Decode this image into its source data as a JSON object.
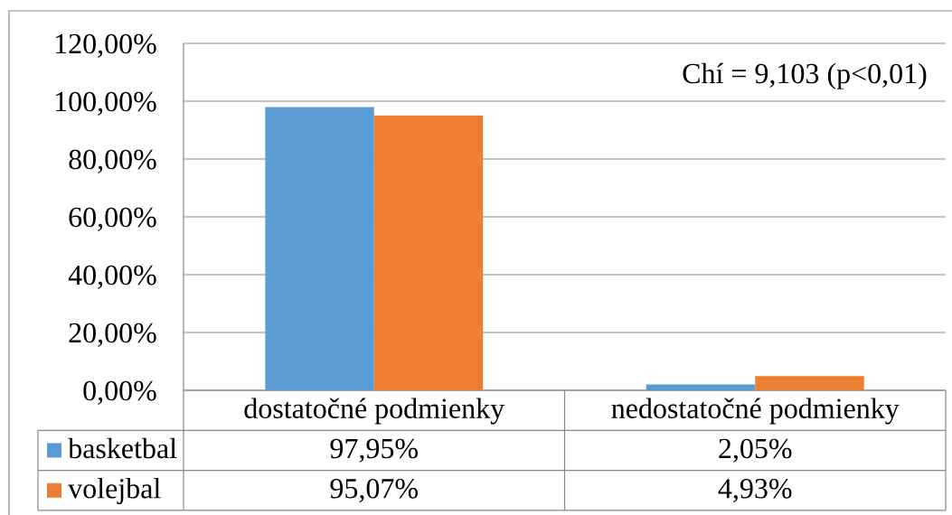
{
  "chart_data": {
    "type": "bar",
    "categories": [
      "dostatočné podmienky",
      "nedostatočné podmienky"
    ],
    "series": [
      {
        "name": "basketbal",
        "color": "#5b9bd5",
        "values": [
          97.95,
          2.05
        ],
        "value_labels": [
          "97,95%",
          "2,05%"
        ]
      },
      {
        "name": "volejbal",
        "color": "#ed7d31",
        "values": [
          95.07,
          4.93
        ],
        "value_labels": [
          "95,07%",
          "4,93%"
        ]
      }
    ],
    "ylim": [
      0,
      120
    ],
    "yticks": [
      {
        "value": 0,
        "label": "0,00%"
      },
      {
        "value": 20,
        "label": "20,00%"
      },
      {
        "value": 40,
        "label": "40,00%"
      },
      {
        "value": 60,
        "label": "60,00%"
      },
      {
        "value": 80,
        "label": "80,00%"
      },
      {
        "value": 100,
        "label": "100,00%"
      },
      {
        "value": 120,
        "label": "120,00%"
      }
    ],
    "grid": "y",
    "legend": "bottom",
    "annotations": [
      "Chí = 9,103 (p<0,01)"
    ]
  }
}
